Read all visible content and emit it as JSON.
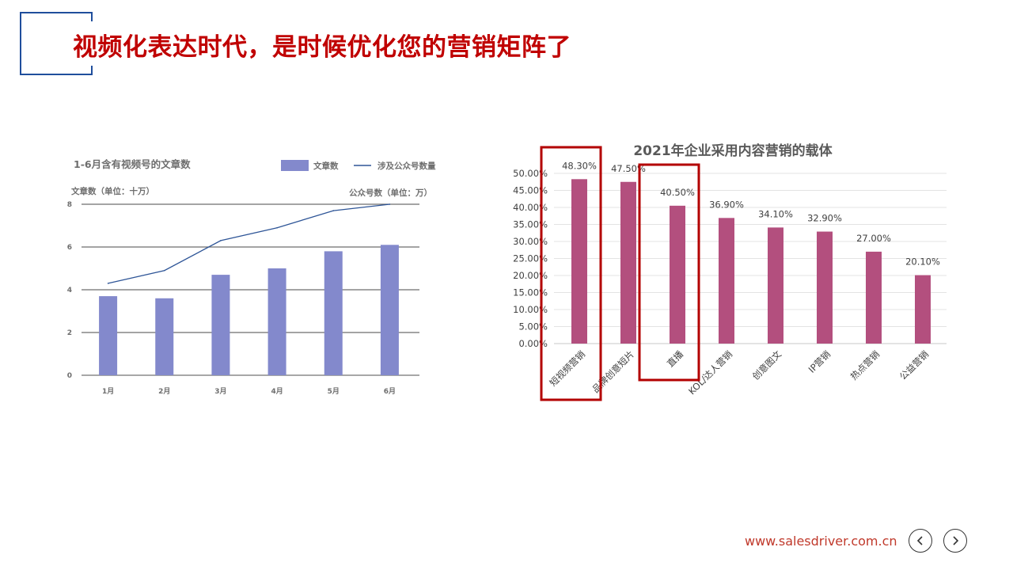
{
  "page": {
    "title": "视频化表达时代，是时候优化您的营销矩阵了",
    "footer_url": "www.salesdriver.com.cn"
  },
  "colors": {
    "title_red": "#c00000",
    "accent_blue": "#1f4e9c",
    "bar_purple": "#8389cc",
    "line_blue": "#2e5597",
    "bar_magenta": "#b34f7e",
    "highlight_box": "#b30000"
  },
  "icons": {
    "prev": "chevron-left-icon",
    "next": "chevron-right-icon"
  },
  "chart_data": [
    {
      "type": "bar",
      "title": "1-6月含有视频号的文章数",
      "categories": [
        "1月",
        "2月",
        "3月",
        "4月",
        "5月",
        "6月"
      ],
      "series": [
        {
          "name": "文章数",
          "type": "bar",
          "axis": "left",
          "values": [
            3.7,
            3.6,
            4.7,
            5.0,
            5.8,
            6.1
          ]
        },
        {
          "name": "涉及公众号数量",
          "type": "line",
          "axis": "right",
          "values": [
            4.3,
            4.9,
            6.3,
            6.9,
            7.7,
            8.0
          ]
        }
      ],
      "ylabel": "文章数（单位：十万）",
      "y2label": "公众号数（单位：万）",
      "ylim": [
        0,
        8
      ],
      "yticks": [
        0,
        2,
        4,
        6,
        8
      ],
      "legend_position": "top-right",
      "grid": true
    },
    {
      "type": "bar",
      "title": "2021年企业采用内容营销的载体",
      "categories": [
        "短视频营销",
        "品牌创意短片",
        "直播",
        "KOL/达人营销",
        "创意图文",
        "IP营销",
        "热点营销",
        "公益营销"
      ],
      "values": [
        48.3,
        47.5,
        40.5,
        36.9,
        34.1,
        32.9,
        27.0,
        20.1
      ],
      "value_labels": [
        "48.30%",
        "47.50%",
        "40.50%",
        "36.90%",
        "34.10%",
        "32.90%",
        "27.00%",
        "20.10%"
      ],
      "ylim": [
        0,
        50
      ],
      "yticks": [
        "0.00%",
        "5.00%",
        "10.00%",
        "15.00%",
        "20.00%",
        "25.00%",
        "30.00%",
        "35.00%",
        "40.00%",
        "45.00%",
        "50.00%"
      ],
      "highlighted_categories": [
        "短视频营销",
        "直播"
      ],
      "grid": true
    }
  ]
}
